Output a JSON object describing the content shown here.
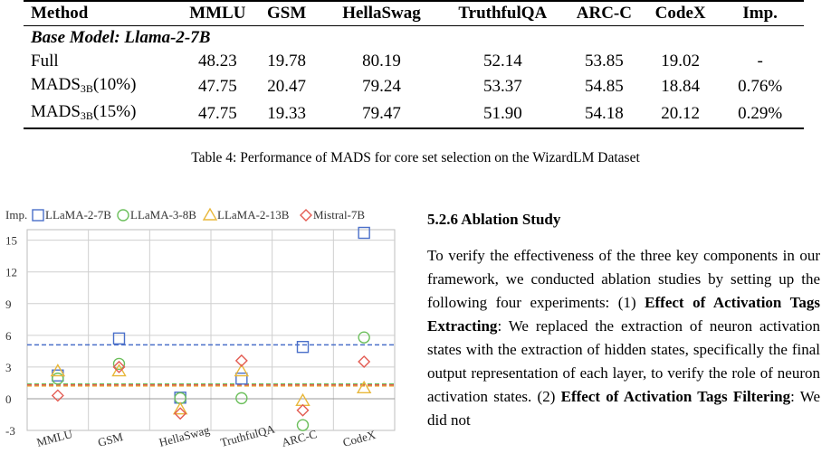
{
  "table": {
    "headers": [
      "Method",
      "MMLU",
      "GSM",
      "HellaSwag",
      "TruthfulQA",
      "ARC-C",
      "CodeX",
      "Imp."
    ],
    "section": "Base Model: Llama-2-7B",
    "rows": [
      {
        "method": "Full",
        "sub": "",
        "pct": "",
        "values": [
          "48.23",
          "19.78",
          "80.19",
          "52.14",
          "53.85",
          "19.02",
          "-"
        ]
      },
      {
        "method": "MADS",
        "sub": "3B",
        "pct": "(10%)",
        "values": [
          "47.75",
          "20.47",
          "79.24",
          "53.37",
          "54.85",
          "18.84",
          "0.76%"
        ]
      },
      {
        "method": "MADS",
        "sub": "3B",
        "pct": "(15%)",
        "values": [
          "47.75",
          "19.33",
          "79.47",
          "51.90",
          "54.18",
          "20.12",
          "0.29%"
        ]
      }
    ],
    "caption": "Table 4: Performance of MADS for core set selection on the WizardLM Dataset"
  },
  "chart_data": {
    "type": "scatter",
    "ylabel": "Imp.",
    "ylim": [
      -3,
      16
    ],
    "yticks": [
      "15",
      "12",
      "9",
      "6",
      "3",
      "0",
      "-3"
    ],
    "categories": [
      "MMLU",
      "GSM",
      "HellaSwag",
      "TruthfulQA",
      "ARC-C",
      "CodeX"
    ],
    "series": [
      {
        "name": "LLaMA-2-7B",
        "color": "#4a6fc9",
        "marker": "square",
        "values": [
          2.2,
          5.7,
          0.1,
          1.9,
          4.9,
          15.7
        ],
        "mean": 5.1
      },
      {
        "name": "LLaMA-3-8B",
        "color": "#6cbf5c",
        "marker": "circle",
        "values": [
          1.9,
          3.3,
          0.05,
          0.05,
          -2.5,
          5.8
        ],
        "mean": 1.4
      },
      {
        "name": "LLaMA-2-13B",
        "color": "#e8b73a",
        "marker": "triangle",
        "values": [
          2.6,
          2.6,
          -1.0,
          2.6,
          -0.2,
          1.0
        ],
        "mean": 1.2
      },
      {
        "name": "Mistral-7B",
        "color": "#e35b52",
        "marker": "diamond",
        "values": [
          0.3,
          3.0,
          -1.4,
          3.6,
          -1.1,
          3.5
        ],
        "mean": 1.3
      }
    ],
    "grid": true,
    "legend": "top"
  },
  "section_heading": "5.2.6   Ablation Study",
  "body": {
    "p1": "To verify the effectiveness of the three key components in our framework, we conducted ablation studies by setting up the following four experiments: (1) ",
    "b1": "Effect of Activation Tags Extracting",
    "p2": ": We replaced the extraction of neuron activation states with the extraction of hidden states, specifically the final output representation of each layer, to verify the role of neuron activation states. (2) ",
    "b2": "Effect of Activation Tags Filtering",
    "p3": ": We did not"
  }
}
